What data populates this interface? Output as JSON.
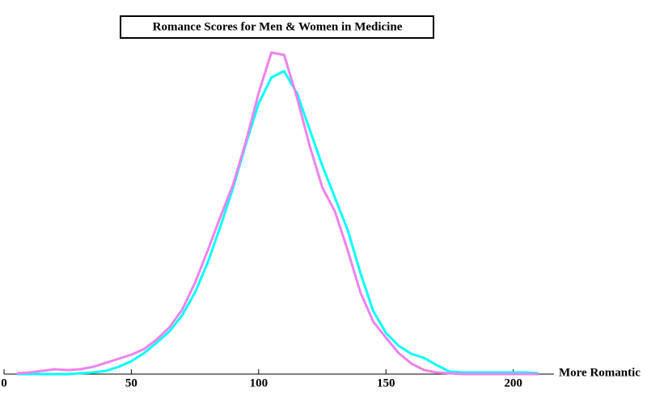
{
  "chart_data": {
    "type": "line",
    "title": "Romance Scores for Men & Women in Medicine",
    "x_label": "More Romantic",
    "x": [
      5,
      10,
      15,
      20,
      25,
      30,
      35,
      40,
      45,
      50,
      55,
      60,
      65,
      70,
      75,
      80,
      85,
      90,
      95,
      100,
      105,
      110,
      115,
      120,
      125,
      130,
      135,
      140,
      145,
      150,
      155,
      160,
      165,
      170,
      175,
      180,
      185,
      190,
      195,
      200,
      205,
      210
    ],
    "series": [
      {
        "color": "#00ffff",
        "values": [
          0,
          0,
          0,
          0,
          0,
          1,
          2,
          4,
          9,
          16,
          26,
          39,
          53,
          73,
          101,
          138,
          183,
          231,
          285,
          335,
          367,
          375,
          348,
          303,
          258,
          218,
          178,
          125,
          78,
          51,
          35,
          25,
          20,
          11,
          3,
          2,
          2,
          2,
          2,
          2,
          2,
          1
        ]
      },
      {
        "color": "#ee82ee",
        "values": [
          1,
          2,
          4,
          6,
          5,
          6,
          9,
          14,
          19,
          24,
          31,
          43,
          58,
          80,
          113,
          153,
          195,
          235,
          288,
          348,
          398,
          395,
          343,
          283,
          231,
          201,
          153,
          101,
          65,
          45,
          26,
          13,
          5,
          2,
          1,
          0,
          0,
          0,
          0,
          0,
          0,
          0
        ]
      }
    ],
    "xlim": [
      0,
      216
    ],
    "xticks": [
      0,
      50,
      100,
      150,
      200
    ],
    "ylim": [
      0,
      420
    ]
  }
}
